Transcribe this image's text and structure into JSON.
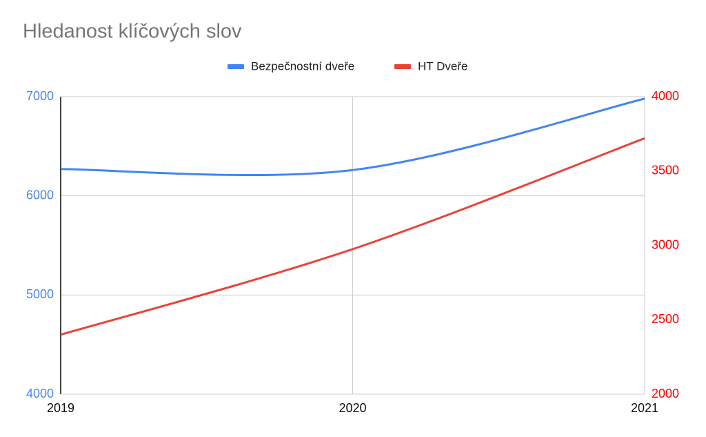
{
  "chart_data": {
    "type": "line",
    "title": "Hledanost klíčových slov",
    "x": [
      2019,
      2020,
      2021
    ],
    "xlim": [
      2019,
      2021
    ],
    "xticks": [
      2019,
      2020,
      2021
    ],
    "series": [
      {
        "name": "Bezpečnostní dveře",
        "color": "#4285f4",
        "values": [
          6270,
          6260,
          6980
        ]
      },
      {
        "name": "HT Dveře",
        "color": "#ea4335",
        "values": [
          2400,
          2975,
          3720
        ],
        "axis": "y2"
      }
    ],
    "ylim": [
      4000,
      7000
    ],
    "yticks": [
      4000,
      5000,
      6000,
      7000
    ],
    "y2lim": [
      2000,
      4000
    ],
    "y2ticks": [
      2000,
      2500,
      3000,
      3500,
      4000
    ],
    "grid": true,
    "legend": "top",
    "smooth": true
  }
}
